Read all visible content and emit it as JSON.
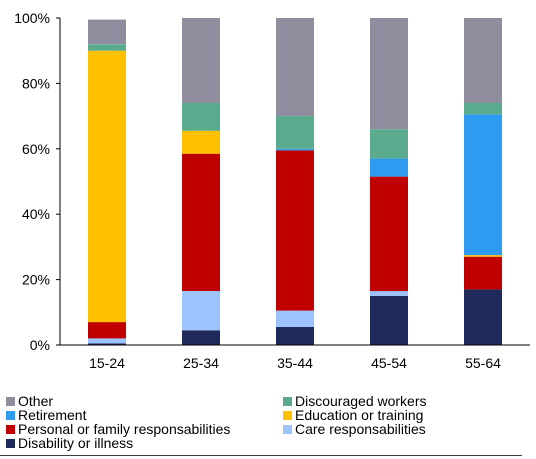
{
  "chart_data": {
    "type": "bar",
    "stacked": true,
    "categories": [
      "15-24",
      "25-34",
      "35-44",
      "45-54",
      "55-64"
    ],
    "ylim": [
      0,
      100
    ],
    "yticks": [
      "0%",
      "20%",
      "40%",
      "60%",
      "80%",
      "100%"
    ],
    "title": "",
    "xlabel": "",
    "ylabel": "",
    "grid": false,
    "legend_position": "bottom",
    "series": [
      {
        "name": "Disability or illness",
        "color": "#1f2a5a",
        "values": [
          0.5,
          4.5,
          5.5,
          15.0,
          17.0
        ]
      },
      {
        "name": "Care responsabilities",
        "color": "#9dc3ff",
        "values": [
          1.5,
          12.0,
          5.0,
          1.5,
          0.0
        ]
      },
      {
        "name": "Personal or family responsabilities",
        "color": "#c00000",
        "values": [
          5.0,
          42.0,
          49.0,
          35.0,
          10.0
        ]
      },
      {
        "name": "Education or training",
        "color": "#ffc000",
        "values": [
          83.0,
          7.0,
          0.0,
          0.0,
          0.5
        ]
      },
      {
        "name": "Retirement",
        "color": "#2e9bf0",
        "values": [
          0.0,
          0.0,
          0.5,
          5.5,
          43.0
        ]
      },
      {
        "name": "Discouraged workers",
        "color": "#5aab8e",
        "values": [
          2.0,
          8.5,
          10.0,
          9.0,
          3.5
        ]
      },
      {
        "name": "Other",
        "color": "#8e8e9e",
        "values": [
          7.5,
          26.0,
          30.0,
          34.0,
          26.0
        ]
      }
    ],
    "legend": [
      {
        "name": "Other",
        "color": "#8e8e9e"
      },
      {
        "name": "Discouraged workers",
        "color": "#5aab8e"
      },
      {
        "name": "Retirement",
        "color": "#2e9bf0"
      },
      {
        "name": "Education or training",
        "color": "#ffc000"
      },
      {
        "name": "Personal or family responsabilities",
        "color": "#c00000"
      },
      {
        "name": "Care responsabilities",
        "color": "#9dc3ff"
      },
      {
        "name": "Disability or illness",
        "color": "#1f2a5a"
      }
    ]
  }
}
